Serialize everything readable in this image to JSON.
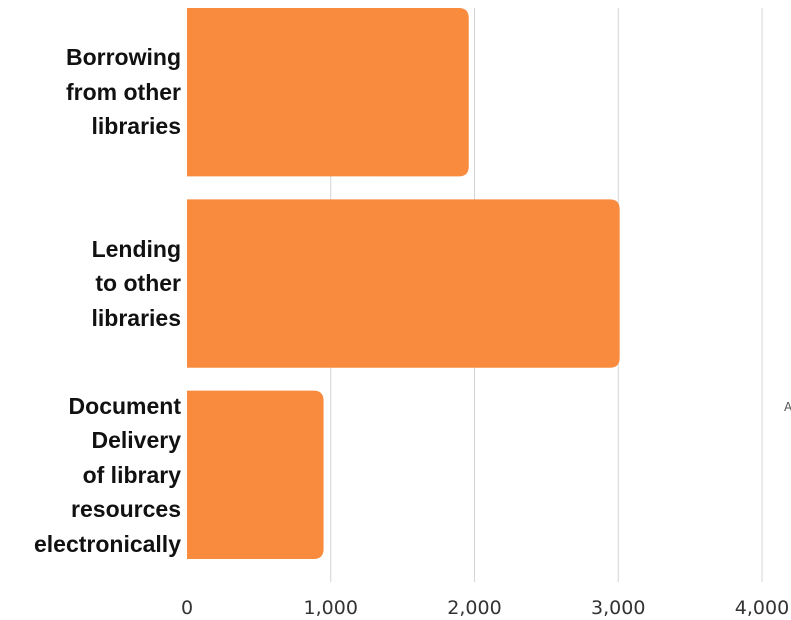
{
  "chart_data": {
    "type": "bar",
    "orientation": "horizontal",
    "title": "",
    "xlabel": "",
    "ylabel": "",
    "categories": [
      [
        "Borrowing",
        "from other",
        "libraries"
      ],
      [
        "Lending",
        "to other",
        "libraries"
      ],
      [
        "Document",
        "Delivery",
        "of library",
        "resources",
        "electronically"
      ]
    ],
    "values": [
      1960,
      3010,
      950
    ],
    "xlim": [
      0,
      4000
    ],
    "xticks": [
      0,
      1000,
      2000,
      3000,
      4000
    ],
    "xtick_labels": [
      "0",
      "1,000",
      "2,000",
      "3,000",
      "4,000"
    ],
    "grid": "vertical",
    "legend": "none"
  },
  "colors": {
    "bar": "#f98b3e",
    "grid": "#d4d4d4",
    "axis": "#cccccc"
  },
  "edge_mark": "A"
}
